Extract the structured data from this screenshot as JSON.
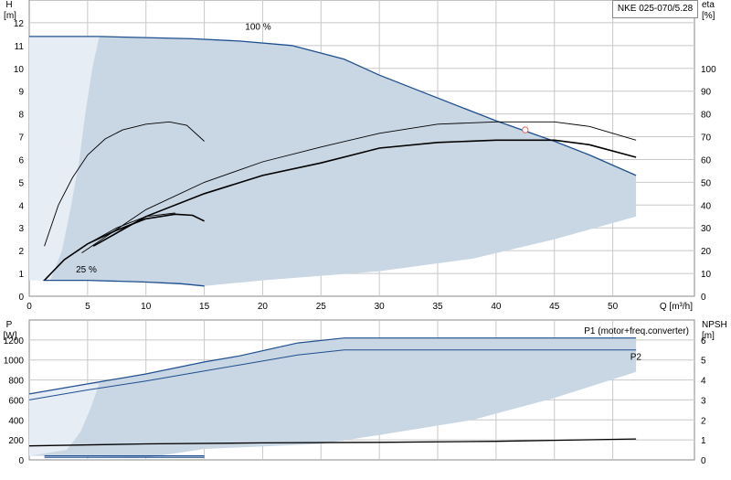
{
  "model_label": "NKE 025-070/5.28",
  "colors": {
    "area_fill": "#c9d6e4",
    "area_fill_light": "#e6edf5",
    "curve_blue": "#1f4f8f",
    "curve_black": "#000000",
    "grid": "#c8c8c8",
    "duty_point": "#e06060"
  },
  "chart_data": [
    {
      "type": "line",
      "panel": "head",
      "y_label_top": "H",
      "y_unit": "[m]",
      "y2_label_top": "eta",
      "y2_unit": "[%]",
      "x_label": "Q [m³/h]",
      "xlim": [
        0,
        57
      ],
      "ylim": [
        0,
        13
      ],
      "y2lim": [
        0,
        130
      ],
      "x_ticks": [
        0,
        5,
        10,
        15,
        20,
        25,
        30,
        35,
        40,
        45,
        50
      ],
      "y_ticks": [
        0,
        1,
        2,
        3,
        4,
        5,
        6,
        7,
        8,
        9,
        10,
        11,
        12
      ],
      "y2_ticks": [
        0,
        10,
        20,
        30,
        40,
        50,
        60,
        70,
        80,
        90,
        100
      ],
      "labels": {
        "speed_max": "100 %",
        "speed_min": "25 %"
      },
      "operating_area": {
        "top": [
          [
            0,
            11.4
          ],
          [
            6,
            11.4
          ],
          [
            14,
            11.3
          ],
          [
            18,
            11.2
          ],
          [
            22.5,
            11.0
          ],
          [
            27,
            10.4
          ],
          [
            30,
            9.7
          ],
          [
            35,
            8.7
          ],
          [
            40,
            7.7
          ],
          [
            45,
            6.8
          ],
          [
            48,
            6.2
          ],
          [
            52,
            5.3
          ]
        ],
        "bottom": [
          [
            52,
            3.5
          ],
          [
            45,
            2.5
          ],
          [
            38,
            1.65
          ],
          [
            30,
            1.1
          ],
          [
            20,
            0.7
          ],
          [
            15,
            0.45
          ],
          [
            10,
            0.6
          ],
          [
            5,
            0.7
          ],
          [
            0,
            0.7
          ]
        ]
      },
      "light_area_boundary": [
        [
          0,
          11.4
        ],
        [
          6,
          11.4
        ],
        [
          5.4,
          10
        ],
        [
          4.8,
          8
        ],
        [
          4.3,
          6
        ],
        [
          3.6,
          4
        ],
        [
          2.8,
          2
        ],
        [
          1.8,
          0.7
        ],
        [
          0,
          0.7
        ]
      ],
      "series": [
        {
          "name": "",
          "role": "head_100",
          "color_key": "curve_blue",
          "width": 1.3,
          "points": [
            [
              0,
              11.4
            ],
            [
              6,
              11.4
            ],
            [
              14,
              11.3
            ],
            [
              18,
              11.2
            ],
            [
              22.5,
              11.0
            ],
            [
              27,
              10.4
            ],
            [
              30,
              9.7
            ],
            [
              35,
              8.7
            ],
            [
              40,
              7.7
            ],
            [
              45,
              6.8
            ],
            [
              48,
              6.2
            ],
            [
              52,
              5.3
            ]
          ]
        },
        {
          "name": "",
          "role": "head_25",
          "color_key": "curve_blue",
          "width": 1.3,
          "points": [
            [
              1.2,
              0.7
            ],
            [
              5,
              0.7
            ],
            [
              10,
              0.62
            ],
            [
              13,
              0.55
            ],
            [
              15,
              0.45
            ]
          ]
        },
        {
          "name": "",
          "role": "eta_pump_100",
          "color_key": "curve_black",
          "width": 0.9,
          "axis": "y2",
          "points": [
            [
              4.5,
              19
            ],
            [
              10,
              38
            ],
            [
              15,
              50
            ],
            [
              20,
              59
            ],
            [
              25,
              65.5
            ],
            [
              30,
              71.5
            ],
            [
              35,
              75.5
            ],
            [
              40,
              76.5
            ],
            [
              45,
              76.5
            ],
            [
              48,
              74.5
            ],
            [
              52,
              68.5
            ]
          ]
        },
        {
          "name": "",
          "role": "eta_total_100",
          "color_key": "curve_black",
          "width": 1.6,
          "axis": "y2",
          "points": [
            [
              5.5,
              22
            ],
            [
              10,
              35
            ],
            [
              15,
              45
            ],
            [
              20,
              53
            ],
            [
              25,
              58.5
            ],
            [
              30,
              65
            ],
            [
              35,
              67.5
            ],
            [
              40,
              68.5
            ],
            [
              45,
              68.5
            ],
            [
              48,
              66.5
            ],
            [
              52,
              61
            ]
          ]
        },
        {
          "name": "",
          "role": "eta_pump_25",
          "color_key": "curve_black",
          "width": 0.9,
          "axis": "y2",
          "points": [
            [
              1.3,
              22
            ],
            [
              2.5,
              40
            ],
            [
              3.7,
              52
            ],
            [
              5,
              62
            ],
            [
              6.5,
              69
            ],
            [
              8,
              73
            ],
            [
              10,
              75.5
            ],
            [
              12,
              76.5
            ],
            [
              13.5,
              75
            ],
            [
              15,
              68
            ]
          ]
        },
        {
          "name": "",
          "role": "eta_total_25",
          "color_key": "curve_black",
          "width": 1.6,
          "axis": "y2",
          "points": [
            [
              1.3,
              7
            ],
            [
              3,
              16
            ],
            [
              5,
              23
            ],
            [
              7.5,
              29
            ],
            [
              10,
              34
            ],
            [
              12.5,
              36
            ],
            [
              14,
              35.5
            ],
            [
              15,
              33
            ]
          ]
        },
        {
          "name": "",
          "role": "eta_misc_25",
          "color_key": "curve_black",
          "width": 0.9,
          "axis": "y2",
          "points": [
            [
              1.3,
              7
            ],
            [
              3,
              16
            ],
            [
              5,
              23
            ],
            [
              7.5,
              30
            ],
            [
              10,
              35
            ],
            [
              12.5,
              36.5
            ]
          ]
        }
      ],
      "duty_point": [
        42.5,
        7.3
      ]
    },
    {
      "type": "line",
      "panel": "power",
      "y_label_top": "P",
      "y_unit": "[W]",
      "y2_label_top": "NPSH",
      "y2_unit": "[m]",
      "xlim": [
        0,
        57
      ],
      "ylim": [
        0,
        1400
      ],
      "y2lim": [
        0,
        7
      ],
      "y_ticks": [
        0,
        200,
        400,
        600,
        800,
        1000,
        1200
      ],
      "y2_ticks": [
        0,
        1,
        2,
        3,
        4,
        5,
        6
      ],
      "series_labels": {
        "p1": "P1 (motor+freq.converter)",
        "p2": "P2"
      },
      "operating_area": {
        "top": [
          [
            0,
            660
          ],
          [
            5,
            760
          ],
          [
            10,
            860
          ],
          [
            15,
            980
          ],
          [
            18,
            1040
          ],
          [
            23,
            1170
          ],
          [
            27,
            1220
          ],
          [
            52,
            1220
          ]
        ],
        "bottom": [
          [
            52,
            880
          ],
          [
            45,
            620
          ],
          [
            38,
            400
          ],
          [
            30,
            250
          ],
          [
            25,
            160
          ],
          [
            15,
            110
          ],
          [
            10,
            20
          ],
          [
            5,
            40
          ],
          [
            0,
            40
          ]
        ]
      },
      "light_area_boundary": [
        [
          0,
          660
        ],
        [
          5,
          760
        ],
        [
          6,
          760
        ],
        [
          5.2,
          500
        ],
        [
          4.4,
          280
        ],
        [
          3.2,
          100
        ],
        [
          0,
          40
        ]
      ],
      "series": [
        {
          "name": "P1 (motor+freq.converter)",
          "role": "p1",
          "color_key": "curve_blue",
          "width": 1.2,
          "points": [
            [
              0,
              660
            ],
            [
              5,
              760
            ],
            [
              10,
              860
            ],
            [
              15,
              980
            ],
            [
              18,
              1040
            ],
            [
              23,
              1170
            ],
            [
              27,
              1220
            ],
            [
              52,
              1220
            ]
          ]
        },
        {
          "name": "P2",
          "role": "p2",
          "color_key": "curve_blue",
          "width": 1.0,
          "points": [
            [
              0,
              600
            ],
            [
              5,
              700
            ],
            [
              10,
              790
            ],
            [
              15,
              890
            ],
            [
              18,
              950
            ],
            [
              23,
              1050
            ],
            [
              27,
              1100
            ],
            [
              52,
              1100
            ]
          ]
        },
        {
          "name": "",
          "role": "p1_25",
          "color_key": "curve_blue",
          "width": 1.2,
          "points": [
            [
              1.3,
              40
            ],
            [
              15,
              40
            ]
          ]
        },
        {
          "name": "",
          "role": "p2_25",
          "color_key": "curve_blue",
          "width": 1.0,
          "points": [
            [
              1.3,
              25
            ],
            [
              15,
              25
            ]
          ]
        },
        {
          "name": "",
          "role": "npsh",
          "color_key": "curve_black",
          "width": 1.3,
          "axis": "y2",
          "points": [
            [
              0,
              0.7
            ],
            [
              10,
              0.8
            ],
            [
              20,
              0.85
            ],
            [
              30,
              0.88
            ],
            [
              40,
              0.93
            ],
            [
              52,
              1.05
            ]
          ]
        }
      ]
    }
  ]
}
